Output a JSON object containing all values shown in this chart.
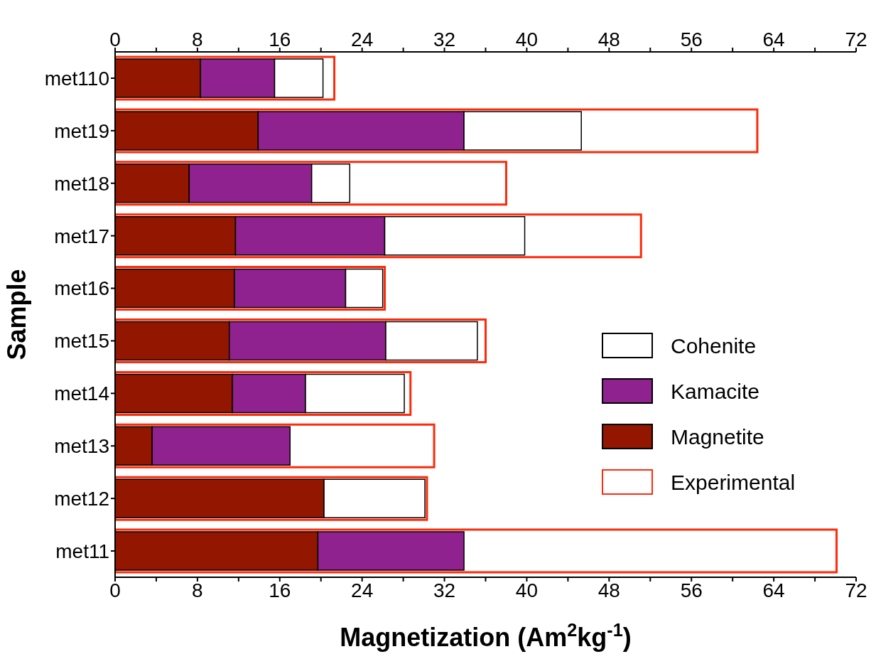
{
  "chart_data": {
    "type": "bar",
    "orientation": "horizontal",
    "xlabel": "Magnetization (Am$^{2}$kg$^{-1}$)",
    "ylabel": "Sample",
    "categories": [
      "met110",
      "met19",
      "met18",
      "met17",
      "met16",
      "met15",
      "met14",
      "met13",
      "met12",
      "met11"
    ],
    "series": [
      {
        "name": "Magnetite",
        "color": "#921600",
        "base": [
          0,
          0,
          0,
          0,
          0,
          0,
          0,
          0,
          0,
          0
        ],
        "values": [
          8.3,
          13.9,
          7.2,
          11.7,
          11.6,
          11.1,
          11.4,
          3.6,
          20.3,
          19.7
        ]
      },
      {
        "name": "Kamacite",
        "color": "#90228f",
        "base": [
          8.3,
          13.9,
          7.2,
          11.7,
          11.6,
          11.1,
          11.4,
          3.6,
          null,
          19.7
        ],
        "values": [
          7.2,
          20.0,
          11.9,
          14.5,
          10.8,
          15.2,
          7.1,
          13.4,
          null,
          14.2
        ]
      },
      {
        "name": "Cohenite",
        "color": "#ffffff",
        "base": [
          15.5,
          33.9,
          19.1,
          26.2,
          22.4,
          26.3,
          18.5,
          null,
          20.3,
          null
        ],
        "values": [
          4.7,
          11.4,
          3.7,
          13.6,
          3.6,
          8.9,
          9.6,
          null,
          9.8,
          null
        ]
      },
      {
        "name": "Experimental",
        "color": "#ff2a0a",
        "values": [
          21.3,
          62.4,
          38.0,
          51.1,
          26.2,
          36.0,
          28.7,
          31.0,
          30.3,
          70.1
        ]
      }
    ],
    "xlim": [
      0,
      72
    ],
    "xticks": [
      0,
      {
        "value": 4,
        "label": null
      },
      8,
      {
        "value": 12,
        "label": null
      },
      16,
      {
        "value": 20,
        "label": null
      },
      24,
      {
        "value": 28,
        "label": null
      },
      32,
      {
        "value": 36,
        "label": null
      },
      40,
      {
        "value": 44,
        "label": null
      },
      48,
      {
        "value": 52,
        "label": null
      },
      56,
      {
        "value": 60,
        "label": null
      },
      64,
      {
        "value": 68,
        "label": null
      },
      72
    ],
    "x2lim": [
      0,
      72
    ],
    "x2ticks": [
      0,
      {
        "value": 4,
        "label": null
      },
      8,
      {
        "value": 12,
        "label": null
      },
      16,
      {
        "value": 20,
        "label": null
      },
      24,
      {
        "value": 28,
        "label": null
      },
      32,
      {
        "value": 36,
        "label": null
      },
      40,
      {
        "value": 44,
        "label": null
      },
      48,
      {
        "value": 52,
        "label": null
      },
      56,
      {
        "value": 60,
        "label": null
      },
      64,
      {
        "value": 68,
        "label": null
      },
      72
    ],
    "legend": "right",
    "grid": false
  }
}
